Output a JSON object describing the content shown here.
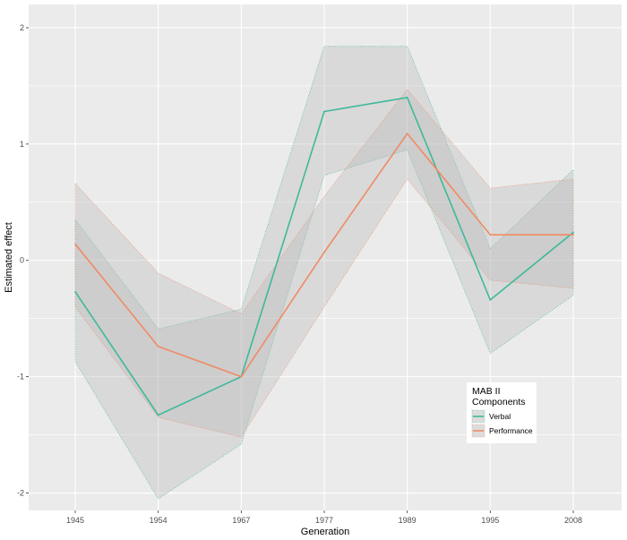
{
  "chart_data": {
    "type": "line",
    "xlabel": "Generation",
    "ylabel": "Estimated effect",
    "categories": [
      "1945",
      "1954",
      "1967",
      "1977",
      "1989",
      "1995",
      "2008"
    ],
    "ylim": [
      -2.15,
      2.2
    ],
    "yticks": [
      "-2",
      "-1",
      "0",
      "1",
      "2"
    ],
    "grid": true,
    "panel_background": "#ebebeb",
    "grid_color": "#ffffff",
    "legend": {
      "title_line1": "MAB II",
      "title_line2": "Components",
      "placement": "inside-bottom-right"
    },
    "series": [
      {
        "name": "Verbal",
        "color": "#3fb99a",
        "values": [
          -0.27,
          -1.33,
          -1.0,
          1.28,
          1.4,
          -0.34,
          0.24
        ],
        "lower": [
          -0.87,
          -2.05,
          -1.58,
          0.73,
          0.95,
          -0.8,
          -0.3
        ],
        "upper": [
          0.35,
          -0.59,
          -0.42,
          1.84,
          1.84,
          0.1,
          0.78
        ]
      },
      {
        "name": "Performance",
        "color": "#f08a64",
        "values": [
          0.14,
          -0.74,
          -1.0,
          0.07,
          1.09,
          0.22,
          0.22
        ],
        "lower": [
          -0.4,
          -1.35,
          -1.52,
          -0.4,
          0.7,
          -0.17,
          -0.24
        ],
        "upper": [
          0.66,
          -0.11,
          -0.46,
          0.55,
          1.47,
          0.62,
          0.7
        ]
      }
    ]
  }
}
